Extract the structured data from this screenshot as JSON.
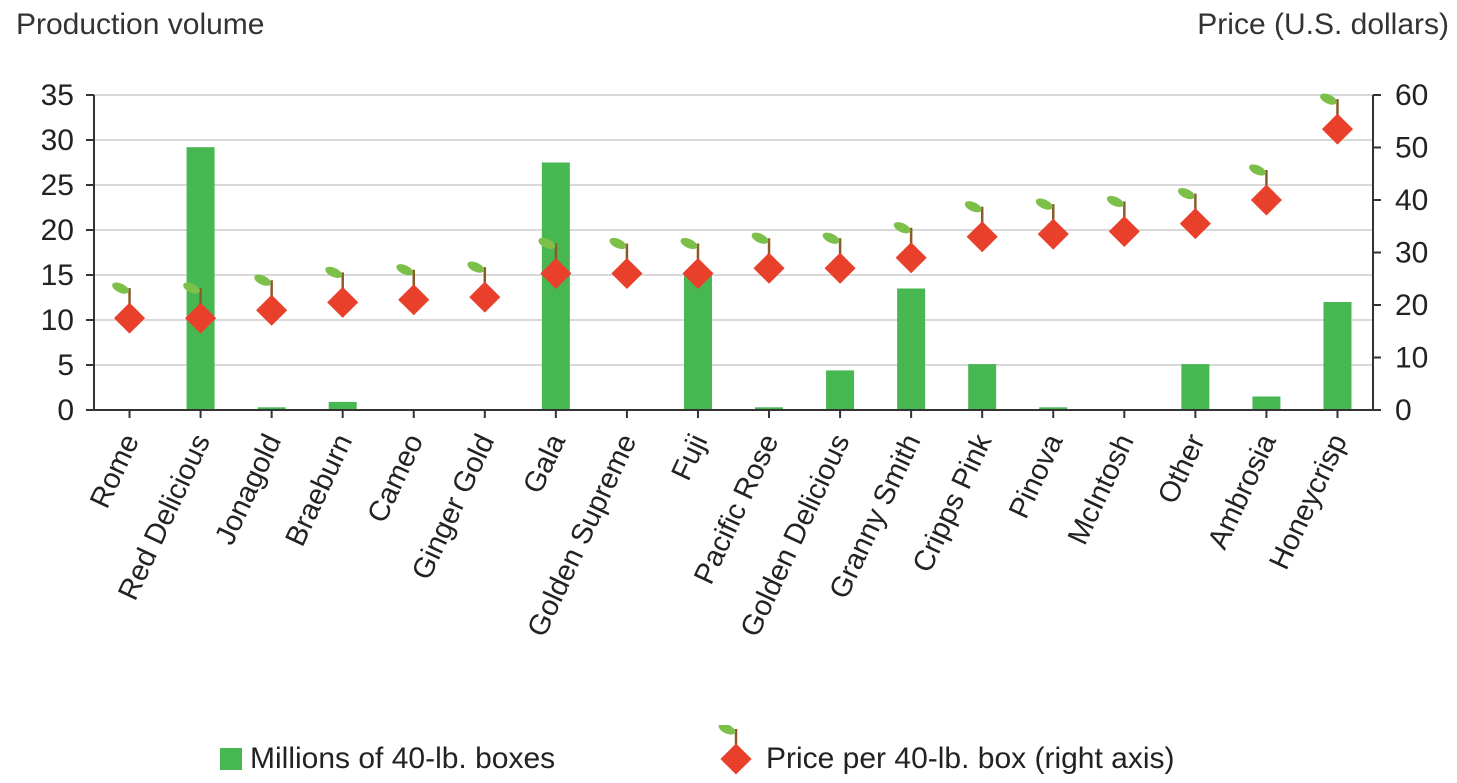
{
  "chart_data": {
    "type": "bar",
    "left_axis_title": "Production volume",
    "right_axis_title": "Price (U.S. dollars)",
    "categories": [
      "Rome",
      "Red Delicious",
      "Jonagold",
      "Braeburn",
      "Cameo",
      "Ginger Gold",
      "Gala",
      "Golden Supreme",
      "Fuji",
      "Pacific Rose",
      "Golden Delicious",
      "Granny Smith",
      "Cripps Pink",
      "Pinova",
      "McIntosh",
      "Other",
      "Ambrosia",
      "Honeycrisp"
    ],
    "series": [
      {
        "name": "Millions of 40-lb. boxes",
        "type": "bar",
        "axis": "left",
        "values": [
          0,
          29.2,
          0.3,
          0.9,
          0,
          0,
          27.5,
          0,
          15.0,
          0.3,
          4.4,
          13.5,
          5.1,
          0.3,
          0,
          5.1,
          1.5,
          12.0
        ]
      },
      {
        "name": "Price per 40-lb. box (right axis)",
        "type": "scatter",
        "axis": "right",
        "values": [
          17.5,
          17.5,
          19,
          20.5,
          21,
          21.5,
          26,
          26,
          26,
          27,
          27,
          29,
          33,
          33.5,
          34,
          35.5,
          40,
          53.5
        ]
      }
    ],
    "ylim_left": [
      0,
      35
    ],
    "yticks_left": [
      0,
      5,
      10,
      15,
      20,
      25,
      30,
      35
    ],
    "ylim_right": [
      0,
      60
    ],
    "yticks_right": [
      0,
      10,
      20,
      30,
      40,
      50,
      60
    ],
    "grid": true,
    "legend_position": "bottom",
    "colors": {
      "bar": "#47b752",
      "marker": "#e8402a",
      "leaf": "#7cc04a",
      "stem": "#8a5a2b",
      "grid": "#d9d9d9",
      "axis": "#333333"
    }
  }
}
